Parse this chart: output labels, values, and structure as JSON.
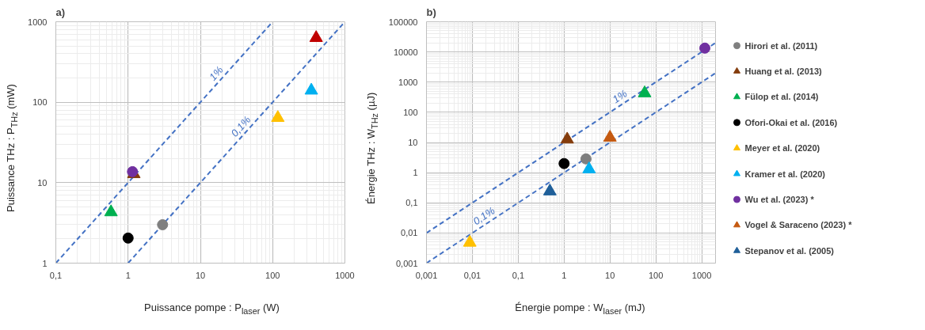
{
  "chart_data": [
    {
      "type": "scatter",
      "title": "a)",
      "xlabel": "Puissance pompe : P$_{laser}$ (W)",
      "ylabel": "Puissance THz : P$_{THz}$ (mW)",
      "log": "xy",
      "grid": true,
      "xlim": [
        0.1,
        1000
      ],
      "ylim": [
        1,
        1000
      ],
      "xticks": [
        {
          "value": 0.1,
          "label": "0,1"
        },
        1,
        10,
        100,
        1000
      ],
      "yticks": [
        1,
        10,
        100,
        1000
      ],
      "series": [
        {
          "type": "line",
          "name": "1%",
          "line_style": "dashed",
          "color": "#4472c4",
          "x": [
            0.1,
            100
          ],
          "values": [
            1,
            1000
          ]
        },
        {
          "type": "line",
          "name": "0,1%",
          "line_style": "dashed",
          "color": "#4472c4",
          "x": [
            1,
            1000
          ],
          "values": [
            1,
            1000
          ]
        },
        {
          "marker": "circle",
          "color": "#7f7f7f",
          "x": [
            3.0
          ],
          "values": [
            3.0
          ]
        },
        {
          "marker": "triangle",
          "color": "#843c0c",
          "x": [
            1.2
          ],
          "values": [
            12.8
          ]
        },
        {
          "marker": "triangle",
          "color": "#00b050",
          "x": [
            0.58
          ],
          "values": [
            4.3
          ]
        },
        {
          "marker": "circle",
          "color": "#000000",
          "x": [
            1.0
          ],
          "values": [
            2.05
          ]
        },
        {
          "marker": "triangle",
          "color": "#ffc000",
          "x": [
            118
          ],
          "values": [
            64
          ]
        },
        {
          "marker": "triangle",
          "color": "#00b0f0",
          "x": [
            343
          ],
          "values": [
            140
          ]
        },
        {
          "marker": "circle",
          "color": "#7030a0",
          "x": [
            1.15
          ],
          "values": [
            13.7
          ]
        },
        {
          "marker": "triangle",
          "color": "#c00000",
          "x": [
            400
          ],
          "values": [
            630
          ]
        }
      ]
    },
    {
      "type": "scatter",
      "title": "b)",
      "xlabel": "Énergie pompe : W$_{laser}$ (mJ)",
      "ylabel": "Énergie THz : W$_{THz}$ (µJ)",
      "log": "xy",
      "grid": true,
      "legend": "right",
      "xlim": [
        0.001,
        2000
      ],
      "ylim": [
        0.001,
        100000
      ],
      "xticks": [
        {
          "value": 0.001,
          "label": "0,001"
        },
        {
          "value": 0.01,
          "label": "0,01"
        },
        {
          "value": 0.1,
          "label": "0,1"
        },
        1,
        10,
        100,
        1000
      ],
      "yticks": [
        {
          "value": 0.001,
          "label": "0,001"
        },
        {
          "value": 0.01,
          "label": "0,01"
        },
        {
          "value": 0.1,
          "label": "0,1"
        },
        1,
        10,
        100,
        1000,
        10000,
        100000
      ],
      "series": [
        {
          "type": "line",
          "name": "1%",
          "line_style": "dashed",
          "color": "#4472c4",
          "x": [
            0.001,
            2000
          ],
          "values": [
            0.01,
            20000
          ]
        },
        {
          "type": "line",
          "name": "0,1%",
          "line_style": "dashed",
          "color": "#4472c4",
          "x": [
            0.001,
            2000
          ],
          "values": [
            0.001,
            2000
          ]
        },
        {
          "name": "Hirori et al. (2011)",
          "marker": "circle",
          "color": "#7f7f7f",
          "x": [
            3.0
          ],
          "values": [
            2.85
          ]
        },
        {
          "name": "Huang et al. (2013)",
          "marker": "triangle",
          "color": "#843c0c",
          "x": [
            1.17
          ],
          "values": [
            12.6
          ]
        },
        {
          "name": "Fülop et al. (2014)",
          "marker": "triangle",
          "color": "#00b050",
          "x": [
            57
          ],
          "values": [
            430
          ]
        },
        {
          "name": "Ofori-Okai et al. (2016)",
          "marker": "circle",
          "color": "#000000",
          "x": [
            1.0
          ],
          "values": [
            2.0
          ]
        },
        {
          "name": "Meyer et al. (2020)",
          "marker": "triangle",
          "color": "#ffc000",
          "x": [
            0.0088
          ],
          "values": [
            0.0048
          ]
        },
        {
          "name": "Kramer et al. (2020)",
          "marker": "triangle",
          "color": "#00b0f0",
          "x": [
            3.5
          ],
          "values": [
            1.3
          ]
        },
        {
          "name": "Wu et al. (2023) *",
          "marker": "circle",
          "color": "#7030a0",
          "x": [
            1170
          ],
          "values": [
            13400
          ]
        },
        {
          "name": "Vogel & Saraceno (2023) *",
          "marker": "triangle",
          "color": "#c55a11",
          "x": [
            10
          ],
          "values": [
            14.5
          ]
        },
        {
          "name": "Stepanov et al. (2005)",
          "marker": "triangle",
          "color": "#1f5f99",
          "x": [
            0.49
          ],
          "values": [
            0.24
          ]
        }
      ]
    }
  ]
}
